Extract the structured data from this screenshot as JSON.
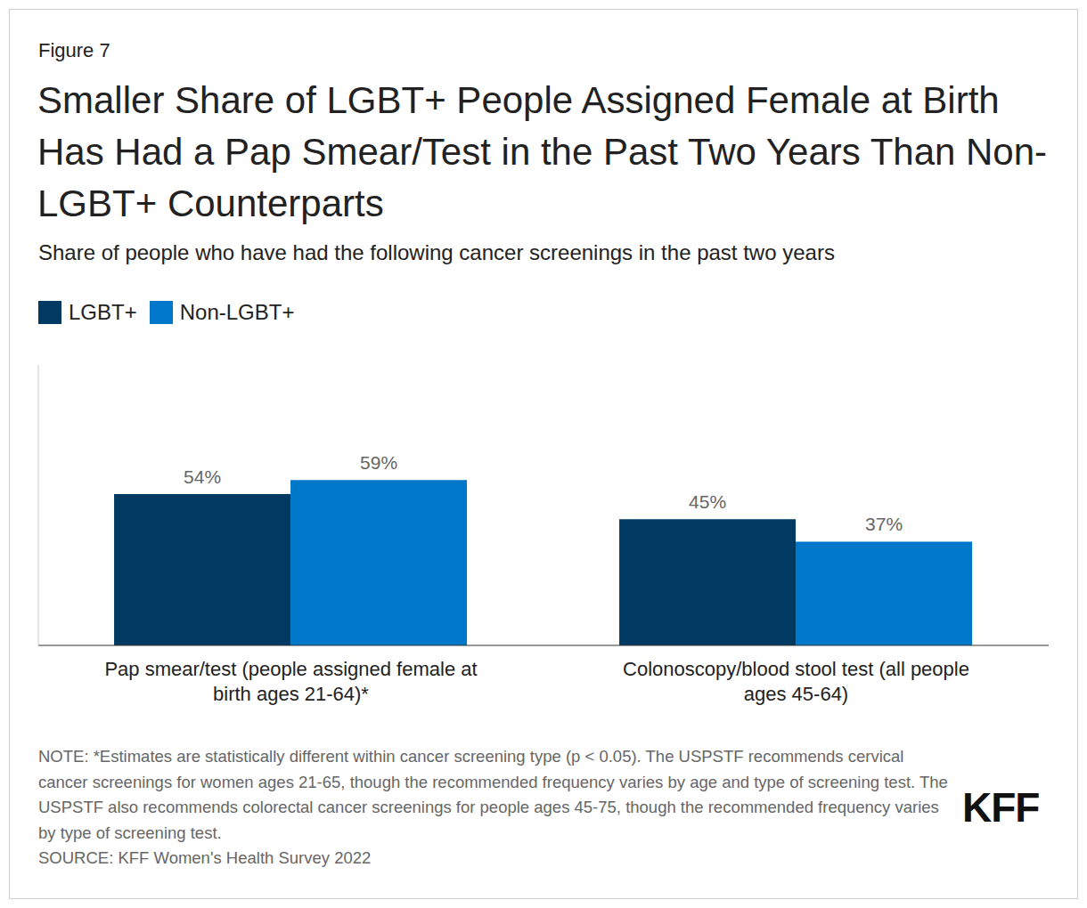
{
  "chart_data": {
    "type": "bar",
    "label": "Figure 7",
    "title": "Smaller Share of LGBT+ People Assigned Female at Birth Has Had a Pap Smear/Test in the Past Two Years Than Non-LGBT+ Counterparts",
    "subtitle": "Share of people who have had the following cancer screenings in the past two years",
    "categories": [
      "Pap smear/test (people assigned female at birth ages 21-64)*",
      "Colonoscopy/blood stool test (all people ages 45-64)"
    ],
    "series": [
      {
        "name": "LGBT+",
        "color": "#003a63",
        "values": [
          54,
          45
        ],
        "value_labels": [
          "54%",
          "45%"
        ]
      },
      {
        "name": "Non-LGBT+",
        "color": "#0077c8",
        "values": [
          59,
          37
        ],
        "value_labels": [
          "59%",
          "37%"
        ]
      }
    ],
    "ylim": [
      0,
      100
    ],
    "data_labels": true,
    "tick_labels": "x",
    "grid": false,
    "legend": "top-left",
    "note": "NOTE: *Estimates are statistically different within cancer screening type (p < 0.05). The USPSTF recommends cervical cancer screenings for women ages 21-65, though the recommended frequency varies by age and type of screening test. The USPSTF also recommends colorectal cancer screenings for people ages 45-75, though the recommended frequency varies by type of screening test.",
    "source": "SOURCE: KFF Women's Health Survey 2022",
    "logo": "KFF"
  }
}
